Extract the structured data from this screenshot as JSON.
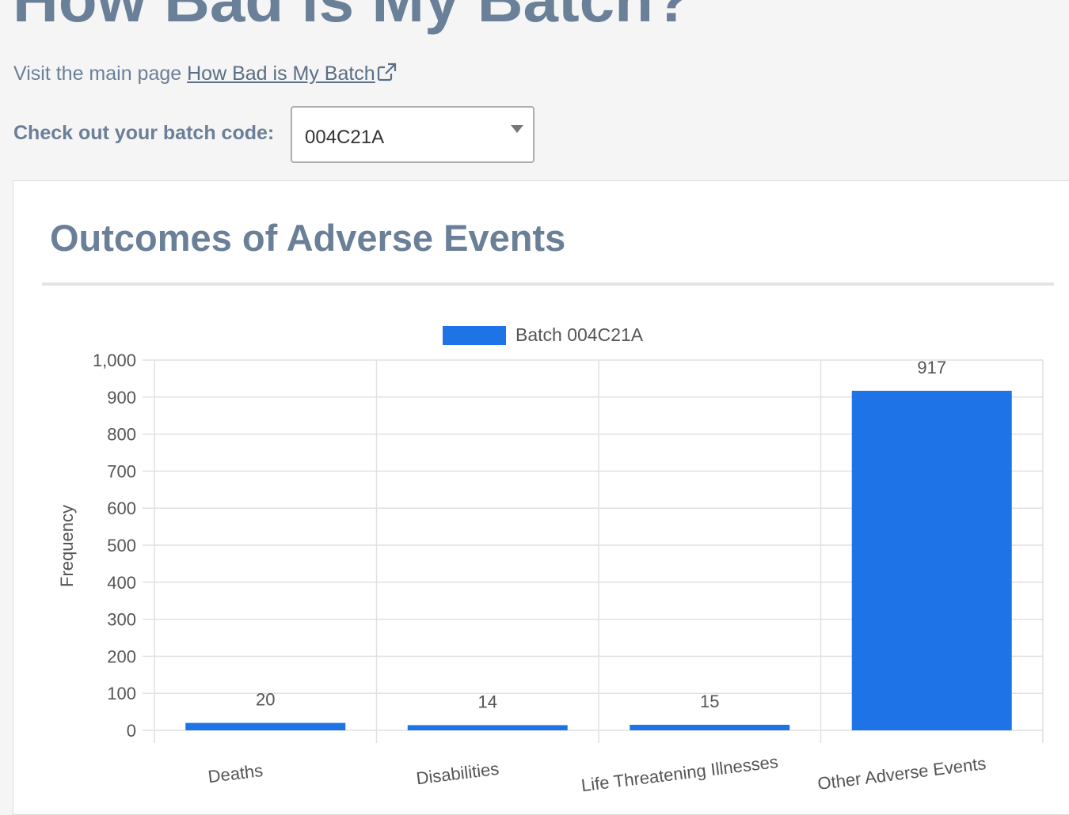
{
  "header": {
    "title": "How Bad is My Batch?",
    "visit_prefix": "Visit the main page",
    "visit_link_label": "How Bad is My Batch"
  },
  "batch_selector": {
    "label": "Check out your batch code:",
    "selected_value": "004C21A"
  },
  "card": {
    "title": "Outcomes of Adverse Events"
  },
  "chart_data": {
    "type": "bar",
    "title": "",
    "categories": [
      "Deaths",
      "Disabilities",
      "Life Threatening Illnesses",
      "Other Adverse Events"
    ],
    "series": [
      {
        "name": "Batch 004C21A",
        "values": [
          20,
          14,
          15,
          917
        ],
        "color": "#1e73e6"
      }
    ],
    "data_labels": [
      "20",
      "14",
      "15",
      "917"
    ],
    "xlabel": "",
    "ylabel": "Frequency",
    "ylim": [
      0,
      1000
    ],
    "yticks": [
      0,
      100,
      200,
      300,
      400,
      500,
      600,
      700,
      800,
      900,
      1000
    ],
    "ytick_labels": [
      "0",
      "100",
      "200",
      "300",
      "400",
      "500",
      "600",
      "700",
      "800",
      "900",
      "1,000"
    ],
    "grid": true,
    "legend": "top-center"
  },
  "colors": {
    "heading": "#6a7f98",
    "bar": "#1e73e6",
    "grid": "#e1e1e1"
  }
}
